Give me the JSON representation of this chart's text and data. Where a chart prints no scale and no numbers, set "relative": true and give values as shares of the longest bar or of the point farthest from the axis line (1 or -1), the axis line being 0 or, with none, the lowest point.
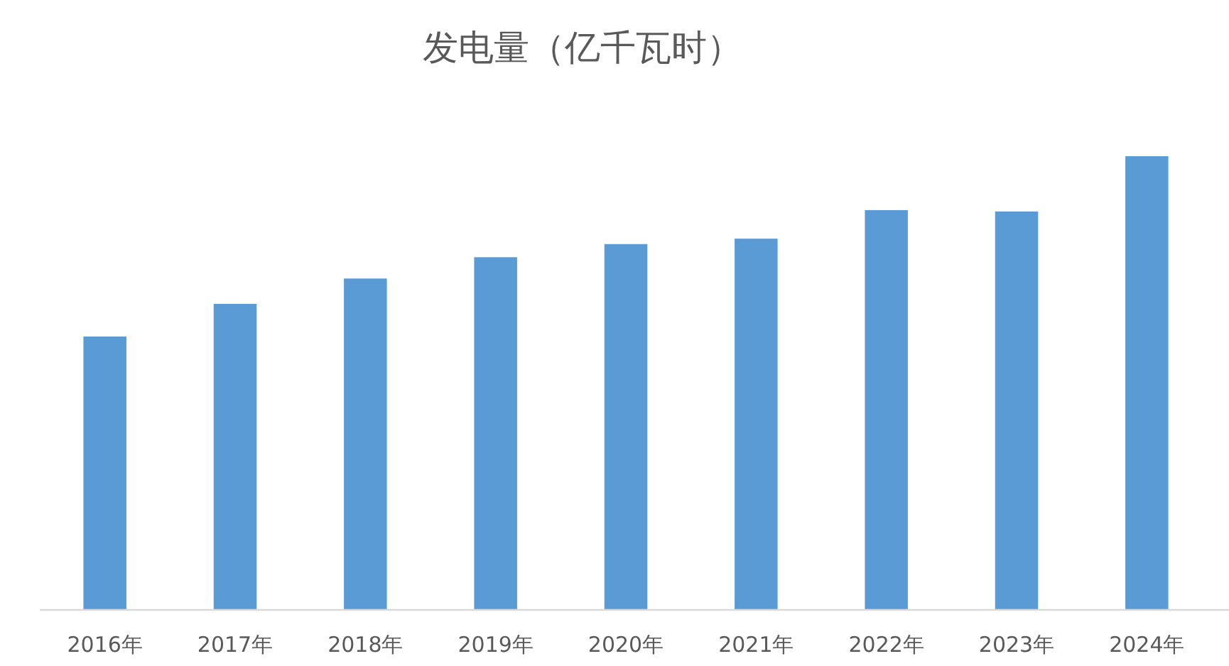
{
  "chart_data": {
    "type": "bar",
    "title": "发电量（亿千瓦时）",
    "relative": true,
    "categories": [
      "2016年",
      "2017年",
      "2018年",
      "2019年",
      "2020年",
      "2021年",
      "2022年",
      "2023年",
      "2024年"
    ],
    "values": [
      0.602,
      0.674,
      0.73,
      0.777,
      0.806,
      0.818,
      0.881,
      0.878,
      1
    ],
    "color": "#5b9bd5"
  }
}
